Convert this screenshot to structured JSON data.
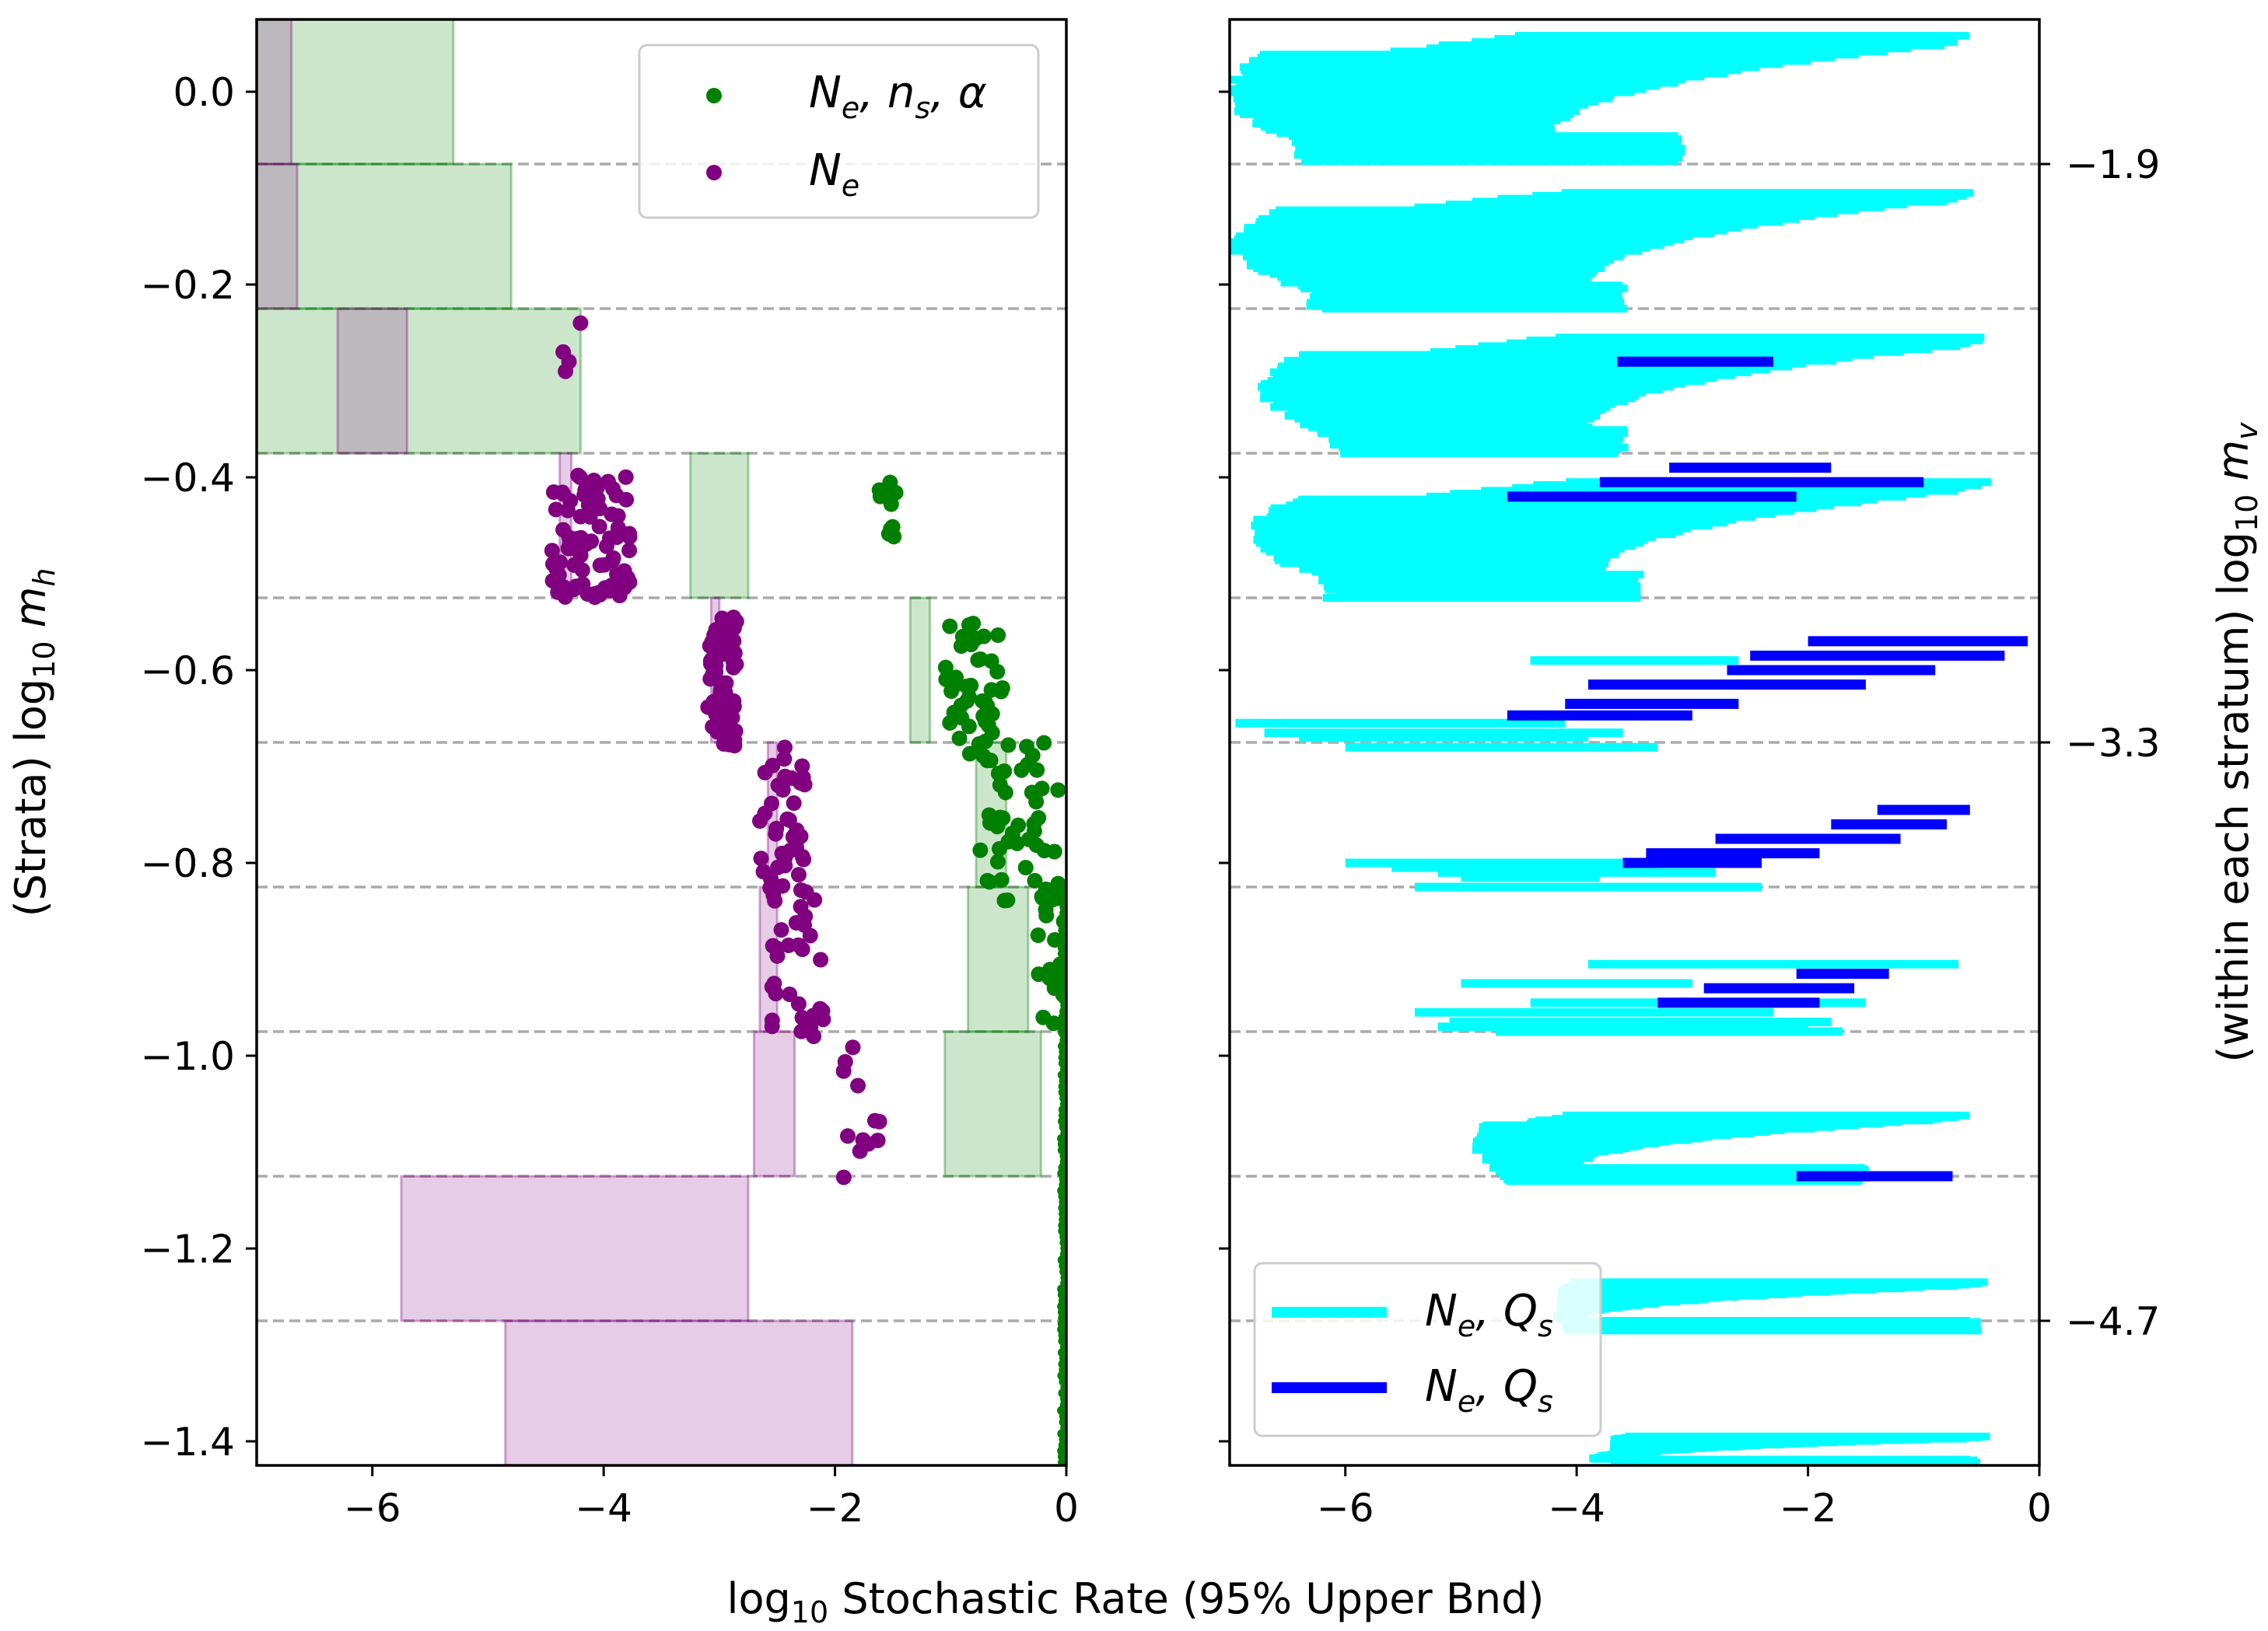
{
  "chart_data": [
    {
      "type": "scatter",
      "panel": "left",
      "xlabel": "log10 Stochastic Rate (95% Upper Bnd)",
      "ylabel": "(Strata) log10 m_h",
      "xlim": [
        -7,
        0
      ],
      "ylim": [
        -1.425,
        0.075
      ],
      "xticks": [
        "−6",
        "−4",
        "−2",
        "0"
      ],
      "xtick_values": [
        -6,
        -4,
        -2,
        0
      ],
      "yticks": [
        "0.0",
        "−0.2",
        "−0.4",
        "−0.6",
        "−0.8",
        "−1.0",
        "−1.2",
        "−1.4"
      ],
      "ytick_values": [
        0,
        -0.2,
        -0.4,
        -0.6,
        -0.8,
        -1.0,
        -1.2,
        -1.4
      ],
      "strata_boundaries": [
        -0.075,
        -0.225,
        -0.375,
        -0.525,
        -0.675,
        -0.825,
        -0.975,
        -1.125,
        -1.275
      ],
      "legend": {
        "location": "top-right",
        "entries": [
          {
            "main": "N",
            "sub": "e",
            "rest": ", n",
            "sub2": "s",
            "tail": ", α",
            "color": "#008000"
          },
          {
            "main": "N",
            "sub": "e",
            "rest": "",
            "sub2": "",
            "tail": "",
            "color": "#800080"
          }
        ]
      },
      "green_boxes": [
        {
          "y": [
            -0.075,
            0.075
          ],
          "x": [
            -7,
            -5.3
          ]
        },
        {
          "y": [
            -0.225,
            -0.075
          ],
          "x": [
            -7,
            -4.8
          ]
        },
        {
          "y": [
            -0.375,
            -0.225
          ],
          "x": [
            -7,
            -4.2
          ]
        },
        {
          "y": [
            -0.525,
            -0.375
          ],
          "x": [
            -3.25,
            -2.75
          ]
        },
        {
          "y": [
            -0.675,
            -0.525
          ],
          "x": [
            -1.35,
            -1.18
          ]
        },
        {
          "y": [
            -0.825,
            -0.675
          ],
          "x": [
            -0.78,
            -0.52
          ]
        },
        {
          "y": [
            -0.975,
            -0.825
          ],
          "x": [
            -0.85,
            -0.33
          ]
        },
        {
          "y": [
            -1.125,
            -0.975
          ],
          "x": [
            -1.05,
            -0.22
          ]
        }
      ],
      "purple_boxes": [
        {
          "y": [
            -0.075,
            0.075
          ],
          "x": [
            -7,
            -6.7
          ]
        },
        {
          "y": [
            -0.225,
            -0.075
          ],
          "x": [
            -7,
            -6.65
          ]
        },
        {
          "y": [
            -0.375,
            -0.225
          ],
          "x": [
            -6.3,
            -5.7
          ]
        },
        {
          "y": [
            -0.525,
            -0.375
          ],
          "x": [
            -4.38,
            -4.28
          ]
        },
        {
          "y": [
            -0.675,
            -0.525
          ],
          "x": [
            -3.07,
            -3.0
          ]
        },
        {
          "y": [
            -0.825,
            -0.675
          ],
          "x": [
            -2.58,
            -2.5
          ]
        },
        {
          "y": [
            -0.975,
            -0.825
          ],
          "x": [
            -2.65,
            -2.5
          ]
        },
        {
          "y": [
            -1.125,
            -0.975
          ],
          "x": [
            -2.7,
            -2.35
          ]
        },
        {
          "y": [
            -1.275,
            -1.125
          ],
          "x": [
            -5.75,
            -2.75
          ]
        },
        {
          "y": [
            -1.425,
            -1.275
          ],
          "x": [
            -4.85,
            -1.85
          ]
        }
      ],
      "purple_clusters": [
        {
          "x": [
            -4.45,
            -3.75
          ],
          "y": [
            -0.525,
            -0.395
          ],
          "n": 80
        },
        {
          "x": [
            -3.1,
            -2.85
          ],
          "y": [
            -0.68,
            -0.545
          ],
          "n": 70
        },
        {
          "x": [
            -2.65,
            -2.25
          ],
          "y": [
            -0.83,
            -0.675
          ],
          "n": 40
        },
        {
          "x": [
            -2.55,
            -2.05
          ],
          "y": [
            -0.98,
            -0.82
          ],
          "n": 32
        },
        {
          "x": [
            -1.95,
            -1.6
          ],
          "y": [
            -1.13,
            -0.975
          ],
          "n": 12
        }
      ],
      "purple_points": [
        [
          -4.35,
          -0.27
        ],
        [
          -4.33,
          -0.29
        ],
        [
          -4.3,
          -0.28
        ],
        [
          -4.2,
          -0.24
        ]
      ],
      "green_clusters": [
        {
          "x": [
            -1.65,
            -1.45
          ],
          "y": [
            -0.475,
            -0.405
          ],
          "n": 10
        },
        {
          "x": [
            -1.05,
            -0.55
          ],
          "y": [
            -0.69,
            -0.545
          ],
          "n": 45
        },
        {
          "x": [
            -0.75,
            -0.05
          ],
          "y": [
            -0.84,
            -0.675
          ],
          "n": 45
        },
        {
          "x": [
            -0.25,
            0
          ],
          "y": [
            -0.98,
            -0.82
          ],
          "n": 25
        }
      ]
    },
    {
      "type": "bar",
      "panel": "right",
      "orientation": "horizontal",
      "ylabel": "(within each stratum) log10 m_v",
      "xlim": [
        -7,
        0
      ],
      "xticks": [
        "−6",
        "−4",
        "−2",
        "0"
      ],
      "xtick_values": [
        -6,
        -4,
        -2,
        0
      ],
      "right_yticks": [
        "−1.9",
        "−3.3",
        "−4.7"
      ],
      "right_ytick_values": [
        -0.075,
        -0.675,
        -1.275
      ],
      "legend": {
        "location": "lower-left",
        "entries": [
          {
            "main": "N",
            "sub": "e",
            "rest": ", Q",
            "sub2": "s",
            "color": "#00ffff"
          },
          {
            "main": "N",
            "sub": "e",
            "rest": ", Q",
            "sub2": "s",
            "color": "#0000ff"
          }
        ]
      },
      "cyan_shapes": [
        {
          "kind": "tongue",
          "top": 0.058,
          "bottom": -0.072,
          "x_top": -0.6,
          "x_left": -7.0,
          "x_mid": -4.2,
          "x_bot": -3.1
        },
        {
          "kind": "tongue",
          "top": -0.105,
          "bottom": -0.225,
          "x_top": -0.6,
          "x_left": -6.95,
          "x_mid": -3.9,
          "x_bot": -3.6
        },
        {
          "kind": "tongue",
          "top": -0.255,
          "bottom": -0.375,
          "x_top": -0.45,
          "x_left": -6.7,
          "x_mid": -3.9,
          "x_bot": -3.6
        },
        {
          "kind": "tongue",
          "top": -0.405,
          "bottom": -0.525,
          "x_top": -0.45,
          "x_left": -6.8,
          "x_mid": -3.8,
          "x_bot": -3.45
        },
        {
          "kind": "bars",
          "bars": [
            [
              -4.4,
              -2.6,
              -0.59
            ],
            [
              -6.95,
              -4.1,
              -0.655
            ],
            [
              -6.7,
              -3.6,
              -0.665
            ],
            [
              -6.4,
              -3.9,
              -0.67
            ],
            [
              -6.0,
              -3.3,
              -0.68
            ]
          ]
        },
        {
          "kind": "bars",
          "bars": [
            [
              -6.0,
              -3.5,
              -0.8
            ],
            [
              -5.6,
              -3.3,
              -0.805
            ],
            [
              -5.2,
              -2.8,
              -0.81
            ],
            [
              -5.4,
              -2.4,
              -0.825
            ],
            [
              -5.0,
              -3.8,
              -0.815
            ]
          ]
        },
        {
          "kind": "bars",
          "bars": [
            [
              -3.9,
              -0.7,
              -0.905
            ],
            [
              -5.0,
              -3.0,
              -0.925
            ],
            [
              -5.4,
              -2.3,
              -0.955
            ],
            [
              -5.1,
              -1.8,
              -0.965
            ],
            [
              -4.7,
              -1.7,
              -0.975
            ],
            [
              -5.2,
              -2.0,
              -0.97
            ],
            [
              -4.4,
              -1.5,
              -0.945
            ]
          ]
        },
        {
          "kind": "tongue",
          "top": -1.062,
          "bottom": -1.13,
          "x_top": -0.65,
          "x_left": -4.85,
          "x_mid": -4.0,
          "x_bot": -1.5
        },
        {
          "kind": "tongue",
          "top": -1.235,
          "bottom": -1.285,
          "x_top": -0.45,
          "x_left": -4.1,
          "x_mid": -4.0,
          "x_bot": -0.55
        },
        {
          "kind": "tongue",
          "top": -1.395,
          "bottom": -1.425,
          "x_top": -0.45,
          "x_left": -3.65,
          "x_mid": -3.65,
          "x_bot": -0.55
        }
      ],
      "blue_bars": [
        [
          -3.65,
          -2.3,
          -0.28
        ],
        [
          -3.2,
          -1.8,
          -0.39
        ],
        [
          -3.8,
          -1.0,
          -0.405
        ],
        [
          -4.6,
          -2.1,
          -0.42
        ],
        [
          -2.0,
          -0.1,
          -0.57
        ],
        [
          -2.5,
          -0.3,
          -0.585
        ],
        [
          -2.7,
          -0.9,
          -0.6
        ],
        [
          -3.9,
          -1.5,
          -0.615
        ],
        [
          -4.1,
          -2.6,
          -0.635
        ],
        [
          -4.6,
          -3.0,
          -0.647
        ],
        [
          -1.4,
          -0.6,
          -0.745
        ],
        [
          -1.8,
          -0.8,
          -0.76
        ],
        [
          -2.8,
          -1.2,
          -0.775
        ],
        [
          -3.4,
          -1.9,
          -0.79
        ],
        [
          -3.6,
          -2.4,
          -0.8
        ],
        [
          -2.1,
          -1.3,
          -0.915
        ],
        [
          -2.9,
          -1.6,
          -0.93
        ],
        [
          -3.3,
          -1.9,
          -0.945
        ],
        [
          -2.1,
          -0.75,
          -1.125
        ]
      ]
    }
  ],
  "figure": {
    "xlabel": "log10 Stochastic Rate (95% Upper Bnd)"
  }
}
